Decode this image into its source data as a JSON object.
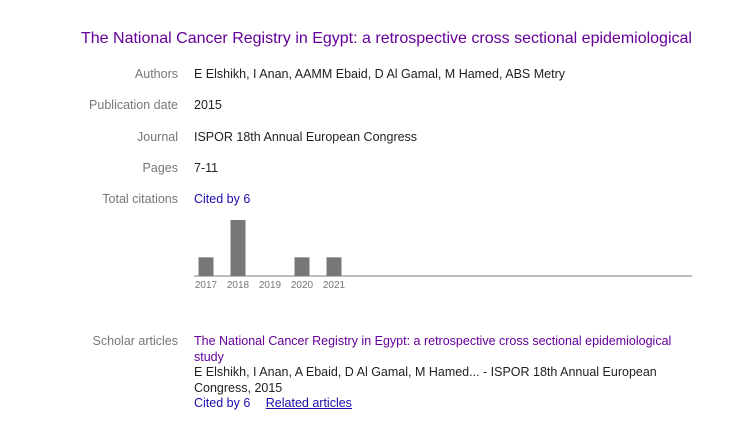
{
  "title": "The National Cancer Registry in Egypt: a retrospective cross sectional epidemiological",
  "fields": [
    {
      "label": "Authors",
      "value": "E Elshikh, I Anan, AAMM Ebaid, D Al Gamal, M Hamed, ABS Metry"
    },
    {
      "label": "Publication date",
      "value": "2015"
    },
    {
      "label": "Journal",
      "value": "ISPOR 18th Annual European Congress"
    },
    {
      "label": "Pages",
      "value": "7-11"
    }
  ],
  "citations": {
    "label": "Total citations",
    "link": "Cited by 6",
    "chart": {
      "type": "bar",
      "categories": [
        "2017",
        "2018",
        "2019",
        "2020",
        "2021"
      ],
      "values": [
        1,
        3,
        0,
        1,
        1
      ],
      "color": "#777777"
    }
  },
  "scholar_articles": {
    "label": "Scholar articles",
    "title": "The National Cancer Registry in Egypt: a retrospective cross sectional epidemiological study",
    "authors": "E Elshikh, I Anan, A Ebaid, D Al Gamal, M Hamed... - ISPOR 18th Annual European Congress, 2015",
    "cited_by": "Cited by 6",
    "related": "Related articles"
  }
}
